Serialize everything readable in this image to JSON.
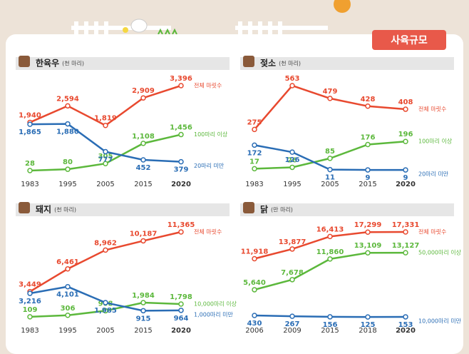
{
  "badge": "사육규모",
  "chart_data": [
    {
      "type": "line",
      "title": "한육우",
      "subtitle": "(천 마리)",
      "categories": [
        "1983",
        "1995",
        "2005",
        "2015",
        "2020"
      ],
      "series": [
        {
          "name": "전체 마릿수",
          "color": "#e8492f",
          "values": [
            1940,
            2594,
            1819,
            2909,
            3396
          ],
          "value_labels": [
            "1,940",
            "2,594",
            "1,819",
            "2,909",
            "3,396"
          ]
        },
        {
          "name": "100마리 이상",
          "color": "#5cb83c",
          "values": [
            28,
            80,
            305,
            1108,
            1456
          ],
          "value_labels": [
            "28",
            "80",
            "305",
            "1,108",
            "1,456"
          ]
        },
        {
          "name": "20마리 미만",
          "color": "#2a6db5",
          "values": [
            1865,
            1880,
            777,
            452,
            379
          ],
          "value_labels": [
            "1,865",
            "1,880",
            "777",
            "452",
            "379"
          ]
        }
      ]
    },
    {
      "type": "line",
      "title": "젖소",
      "subtitle": "(천 마리)",
      "categories": [
        "1983",
        "1995",
        "2005",
        "2015",
        "2020"
      ],
      "series": [
        {
          "name": "전체 마릿수",
          "color": "#e8492f",
          "values": [
            275,
            563,
            479,
            428,
            408
          ]
        },
        {
          "name": "100마리 이상",
          "color": "#5cb83c",
          "values": [
            17,
            26,
            85,
            176,
            196
          ]
        },
        {
          "name": "20마리 미만",
          "color": "#2a6db5",
          "values": [
            172,
            126,
            11,
            9,
            9
          ]
        }
      ]
    },
    {
      "type": "line",
      "title": "돼지",
      "subtitle": "(천 마리)",
      "categories": [
        "1983",
        "1995",
        "2005",
        "2015",
        "2020"
      ],
      "series": [
        {
          "name": "전체 마릿수",
          "color": "#e8492f",
          "values": [
            3449,
            6461,
            8962,
            10187,
            11365
          ],
          "value_labels": [
            "3,449",
            "6,461",
            "8,962",
            "10,187",
            "11,365"
          ]
        },
        {
          "name": "10,000마리 이상",
          "color": "#5cb83c",
          "values": [
            109,
            306,
            908,
            1984,
            1798
          ],
          "value_labels": [
            "109",
            "306",
            "908",
            "1,984",
            "1,798"
          ]
        },
        {
          "name": "1,000마리 미만",
          "color": "#2a6db5",
          "values": [
            3216,
            4101,
            1985,
            915,
            964
          ],
          "value_labels": [
            "3,216",
            "4,101",
            "1,985",
            "915",
            "964"
          ]
        }
      ]
    },
    {
      "type": "line",
      "title": "닭",
      "subtitle": "(만 마리)",
      "categories": [
        "2006",
        "2009",
        "2015",
        "2018",
        "2020"
      ],
      "series": [
        {
          "name": "전체 마릿수",
          "color": "#e8492f",
          "values": [
            11918,
            13877,
            16413,
            17299,
            17331
          ],
          "value_labels": [
            "11,918",
            "13,877",
            "16,413",
            "17,299",
            "17,331"
          ]
        },
        {
          "name": "50,000마리 이상",
          "color": "#5cb83c",
          "values": [
            5640,
            7678,
            11860,
            13109,
            13127
          ],
          "value_labels": [
            "5,640",
            "7,678",
            "11,860",
            "13,109",
            "13,127"
          ]
        },
        {
          "name": "10,000마리 미만",
          "color": "#2a6db5",
          "values": [
            430,
            267,
            156,
            125,
            153
          ]
        }
      ]
    }
  ]
}
